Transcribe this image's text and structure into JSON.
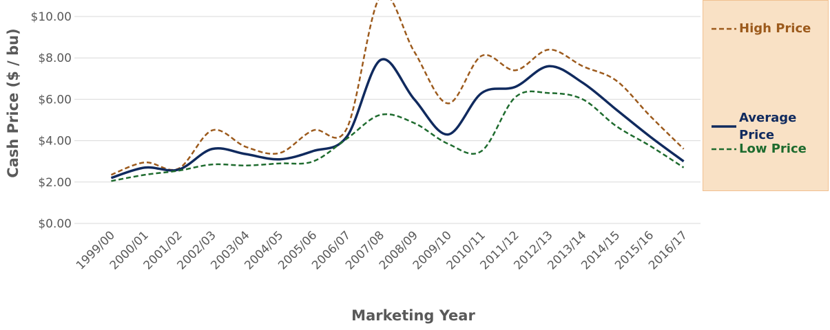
{
  "chart_data": {
    "type": "line",
    "x_label": "Marketing Year",
    "y_label": "Cash Price ($ / bu)",
    "categories": [
      "1999/00",
      "2000/01",
      "2001/02",
      "2002/03",
      "2003/04",
      "2004/05",
      "2005/06",
      "2006/07",
      "2007/08",
      "2008/09",
      "2009/10",
      "2010/11",
      "2011/12",
      "2012/13",
      "2013/14",
      "2014/15",
      "2015/16",
      "2016/17"
    ],
    "series": [
      {
        "name": "High Price",
        "color": "#9c5a1c",
        "dash": true,
        "values": [
          2.35,
          2.95,
          2.65,
          4.5,
          3.7,
          3.4,
          4.5,
          4.6,
          11.0,
          8.3,
          5.8,
          8.1,
          7.4,
          8.4,
          7.6,
          6.9,
          5.2,
          3.6
        ]
      },
      {
        "name": "Average Price",
        "color": "#102a5e",
        "dash": false,
        "values": [
          2.2,
          2.7,
          2.6,
          3.6,
          3.35,
          3.1,
          3.5,
          4.2,
          7.9,
          6.0,
          4.3,
          6.3,
          6.6,
          7.6,
          6.8,
          5.5,
          4.2,
          3.0
        ]
      },
      {
        "name": "Low Price",
        "color": "#1e6b2e",
        "dash": true,
        "values": [
          2.05,
          2.35,
          2.55,
          2.85,
          2.8,
          2.9,
          3.0,
          4.1,
          5.25,
          4.85,
          3.85,
          3.5,
          6.1,
          6.3,
          6.0,
          4.7,
          3.75,
          2.7
        ]
      }
    ],
    "ylim": [
      0,
      10
    ],
    "yticks": [
      {
        "value": 0,
        "label": "$0.00"
      },
      {
        "value": 2,
        "label": "$2.00"
      },
      {
        "value": 4,
        "label": "$4.00"
      },
      {
        "value": 6,
        "label": "$6.00"
      },
      {
        "value": 8,
        "label": "$8.00"
      },
      {
        "value": 10,
        "label": "$10.00"
      }
    ],
    "grid": true,
    "smooth": true,
    "legend": "right"
  }
}
